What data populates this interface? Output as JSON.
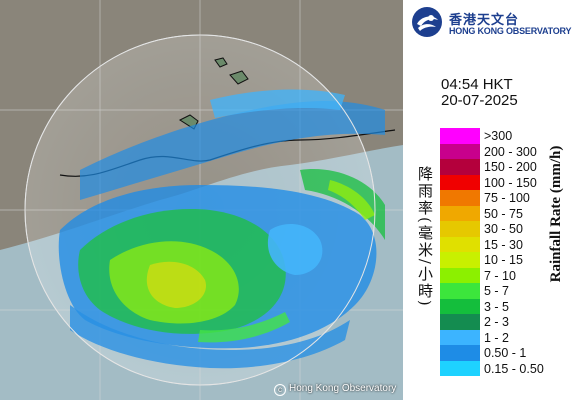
{
  "header": {
    "organization_cn": "香港天文台",
    "organization_en": "HONG KONG OBSERVATORY",
    "logo_icon": "hko-logo-icon"
  },
  "timestamp": {
    "time": "04:54 HKT",
    "date": "20-07-2025"
  },
  "map": {
    "copyright": "Hong Kong Observatory",
    "copyright_icon": "copyright-icon",
    "land_color": "#8e8a80",
    "sea_color": "#a9c0c8"
  },
  "legend": {
    "title_cn": "降雨率(毫米/小時)",
    "title_en": "Rainfall Rate (mm/h)",
    "items": [
      {
        "label": ">300",
        "color": "#ff00ff"
      },
      {
        "label": "200 - 300",
        "color": "#c8008c"
      },
      {
        "label": "150 - 200",
        "color": "#b4003c"
      },
      {
        "label": "100 - 150",
        "color": "#f00000"
      },
      {
        "label": "75 - 100",
        "color": "#f07800"
      },
      {
        "label": "50 - 75",
        "color": "#f0a800"
      },
      {
        "label": "30 - 50",
        "color": "#e6c800"
      },
      {
        "label": "15 - 30",
        "color": "#e0e000"
      },
      {
        "label": "10 - 15",
        "color": "#c8f000"
      },
      {
        "label": "7 - 10",
        "color": "#8cf000"
      },
      {
        "label": "5 - 7",
        "color": "#3ce63c"
      },
      {
        "label": "3 - 5",
        "color": "#14be3c"
      },
      {
        "label": "2 - 3",
        "color": "#148c50"
      },
      {
        "label": "1 - 2",
        "color": "#3cb4ff"
      },
      {
        "label": "0.50 - 1",
        "color": "#1e8ce6"
      },
      {
        "label": "0.15 - 0.50",
        "color": "#1ed2ff"
      }
    ]
  }
}
